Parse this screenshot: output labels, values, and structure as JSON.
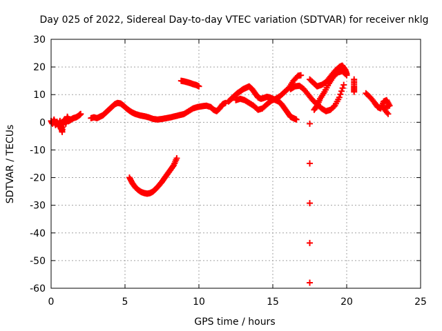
{
  "chart_data": {
    "type": "scatter",
    "title": "Day 025 of 2022, Sidereal Day-to-day VTEC variation (SDTVAR) for receiver nklg",
    "xlabel": "GPS time / hours",
    "ylabel": "SDTVAR / TECUs",
    "xlim": [
      0,
      25
    ],
    "ylim": [
      -60,
      30
    ],
    "xticks": [
      0,
      5,
      10,
      15,
      20,
      25
    ],
    "yticks": [
      30,
      20,
      10,
      0,
      -10,
      -20,
      -30,
      -40,
      -50,
      -60
    ],
    "grid": true,
    "marker": "plus",
    "series_color": "#ff0000",
    "series": [
      {
        "name": "seg-early",
        "points": [
          [
            0.0,
            0.5
          ],
          [
            0.1,
            -0.5
          ],
          [
            0.2,
            1.0
          ],
          [
            0.3,
            -1.0
          ],
          [
            0.4,
            0.2
          ],
          [
            0.5,
            -1.5
          ],
          [
            0.6,
            0.5
          ],
          [
            0.7,
            -2.0
          ],
          [
            0.75,
            -3.5
          ],
          [
            0.8,
            0.0
          ],
          [
            0.9,
            1.0
          ],
          [
            1.0,
            -0.5
          ],
          [
            1.1,
            2.0
          ],
          [
            1.2,
            0.5
          ],
          [
            1.35,
            1.0
          ],
          [
            1.5,
            1.5
          ],
          [
            1.7,
            1.8
          ],
          [
            1.9,
            2.5
          ],
          [
            2.0,
            3.0
          ]
        ]
      },
      {
        "name": "seg-1",
        "points": [
          [
            2.7,
            1.5
          ],
          [
            2.9,
            1.8
          ],
          [
            3.1,
            1.5
          ],
          [
            3.3,
            2.0
          ],
          [
            3.5,
            2.5
          ],
          [
            3.7,
            3.5
          ],
          [
            3.9,
            4.5
          ],
          [
            4.1,
            5.5
          ],
          [
            4.3,
            6.5
          ],
          [
            4.5,
            7.0
          ],
          [
            4.7,
            6.8
          ],
          [
            4.9,
            6.0
          ],
          [
            5.1,
            5.0
          ],
          [
            5.3,
            4.2
          ],
          [
            5.5,
            3.5
          ],
          [
            5.7,
            3.0
          ],
          [
            6.0,
            2.5
          ],
          [
            6.3,
            2.2
          ],
          [
            6.6,
            1.8
          ],
          [
            6.9,
            1.2
          ],
          [
            7.2,
            1.0
          ],
          [
            7.5,
            1.2
          ],
          [
            7.8,
            1.5
          ],
          [
            8.1,
            1.8
          ],
          [
            8.4,
            2.2
          ],
          [
            8.7,
            2.6
          ],
          [
            9.0,
            3.0
          ],
          [
            9.3,
            4.0
          ],
          [
            9.6,
            5.0
          ],
          [
            9.9,
            5.5
          ],
          [
            10.2,
            5.8
          ],
          [
            10.5,
            6.0
          ],
          [
            10.8,
            5.5
          ],
          [
            11.0,
            4.5
          ],
          [
            11.2,
            4.0
          ],
          [
            11.4,
            5.0
          ],
          [
            11.6,
            6.5
          ],
          [
            11.8,
            7.0
          ]
        ]
      },
      {
        "name": "seg-2",
        "points": [
          [
            8.8,
            15.0
          ],
          [
            9.0,
            14.8
          ],
          [
            9.2,
            14.5
          ],
          [
            9.4,
            14.2
          ],
          [
            9.6,
            13.8
          ],
          [
            9.8,
            13.5
          ],
          [
            10.0,
            13.0
          ]
        ]
      },
      {
        "name": "seg-dip",
        "points": [
          [
            5.3,
            -20.0
          ],
          [
            5.5,
            -22.0
          ],
          [
            5.7,
            -23.5
          ],
          [
            5.9,
            -24.5
          ],
          [
            6.1,
            -25.2
          ],
          [
            6.3,
            -25.6
          ],
          [
            6.5,
            -25.8
          ],
          [
            6.7,
            -25.6
          ],
          [
            6.9,
            -25.0
          ],
          [
            7.1,
            -24.0
          ],
          [
            7.3,
            -22.8
          ],
          [
            7.5,
            -21.5
          ],
          [
            7.7,
            -20.0
          ],
          [
            7.9,
            -18.5
          ],
          [
            8.1,
            -17.0
          ],
          [
            8.3,
            -15.5
          ],
          [
            8.5,
            -13.0
          ]
        ]
      },
      {
        "name": "seg-3",
        "points": [
          [
            12.0,
            7.5
          ],
          [
            12.2,
            8.5
          ],
          [
            12.4,
            9.5
          ],
          [
            12.6,
            10.5
          ],
          [
            12.8,
            11.2
          ],
          [
            13.0,
            12.0
          ],
          [
            13.2,
            12.5
          ],
          [
            13.4,
            13.0
          ],
          [
            13.6,
            12.0
          ],
          [
            13.8,
            10.5
          ],
          [
            14.0,
            9.0
          ],
          [
            14.2,
            8.5
          ],
          [
            14.4,
            8.8
          ],
          [
            14.6,
            9.2
          ],
          [
            14.8,
            9.0
          ],
          [
            15.0,
            8.5
          ],
          [
            15.2,
            8.0
          ],
          [
            15.4,
            7.5
          ],
          [
            15.6,
            6.5
          ],
          [
            15.8,
            5.0
          ],
          [
            16.0,
            3.5
          ],
          [
            16.2,
            2.0
          ],
          [
            16.4,
            1.5
          ],
          [
            16.6,
            1.0
          ]
        ]
      },
      {
        "name": "seg-4",
        "points": [
          [
            12.5,
            8.0
          ],
          [
            12.8,
            8.5
          ],
          [
            13.1,
            8.0
          ],
          [
            13.4,
            7.0
          ],
          [
            13.7,
            6.0
          ],
          [
            14.0,
            4.5
          ],
          [
            14.3,
            5.0
          ],
          [
            14.6,
            6.5
          ],
          [
            14.9,
            7.8
          ],
          [
            15.2,
            8.5
          ],
          [
            15.5,
            9.5
          ],
          [
            15.8,
            11.0
          ],
          [
            16.1,
            12.5
          ],
          [
            16.4,
            15.0
          ],
          [
            16.7,
            16.8
          ],
          [
            16.9,
            17.0
          ]
        ]
      },
      {
        "name": "seg-5",
        "points": [
          [
            16.2,
            12.0
          ],
          [
            16.5,
            13.0
          ],
          [
            16.8,
            13.2
          ],
          [
            17.1,
            12.0
          ],
          [
            17.4,
            10.0
          ],
          [
            17.7,
            8.0
          ],
          [
            18.0,
            6.5
          ],
          [
            18.3,
            5.0
          ],
          [
            18.6,
            4.0
          ],
          [
            18.9,
            4.5
          ],
          [
            19.2,
            6.0
          ],
          [
            19.5,
            9.0
          ],
          [
            19.8,
            13.5
          ]
        ]
      },
      {
        "name": "seg-6",
        "points": [
          [
            17.5,
            15.5
          ],
          [
            17.8,
            14.0
          ],
          [
            18.0,
            13.0
          ],
          [
            18.3,
            13.5
          ],
          [
            18.6,
            14.5
          ],
          [
            18.9,
            16.5
          ],
          [
            19.2,
            18.5
          ],
          [
            19.5,
            20.0
          ],
          [
            19.7,
            20.5
          ],
          [
            19.9,
            19.0
          ],
          [
            20.0,
            17.5
          ]
        ]
      },
      {
        "name": "seg-7",
        "points": [
          [
            17.8,
            4.5
          ],
          [
            18.0,
            6.0
          ],
          [
            18.2,
            8.5
          ],
          [
            18.5,
            11.0
          ],
          [
            18.8,
            14.0
          ],
          [
            19.1,
            16.5
          ],
          [
            19.4,
            18.0
          ],
          [
            19.7,
            18.5
          ],
          [
            20.0,
            17.0
          ]
        ]
      },
      {
        "name": "seg-8",
        "points": [
          [
            20.5,
            15.5
          ],
          [
            20.5,
            13.0
          ],
          [
            20.5,
            11.0
          ],
          [
            21.3,
            10.5
          ],
          [
            21.6,
            9.0
          ],
          [
            21.9,
            7.0
          ],
          [
            22.1,
            5.5
          ],
          [
            22.3,
            5.0
          ],
          [
            22.5,
            7.5
          ],
          [
            22.7,
            8.0
          ],
          [
            22.9,
            6.0
          ],
          [
            22.5,
            5.0
          ],
          [
            22.8,
            3.0
          ]
        ]
      },
      {
        "name": "outliers",
        "points": [
          [
            17.5,
            -0.5
          ],
          [
            17.5,
            -58.0
          ]
        ]
      }
    ]
  }
}
